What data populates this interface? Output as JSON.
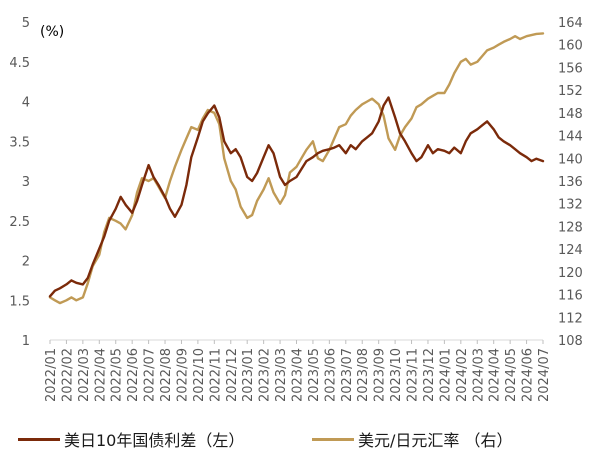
{
  "chart_data": {
    "type": "line",
    "unit_label": "(%)",
    "left_axis": {
      "ticks": [
        "1",
        "1.5",
        "2",
        "2.5",
        "3",
        "3.5",
        "4",
        "4.5",
        "5"
      ],
      "range": [
        1,
        5
      ]
    },
    "right_axis": {
      "ticks": [
        "108",
        "112",
        "116",
        "120",
        "124",
        "128",
        "132",
        "136",
        "140",
        "144",
        "148",
        "152",
        "156",
        "160",
        "164"
      ],
      "range": [
        108,
        164
      ]
    },
    "x_ticks": [
      "2022/01",
      "2022/02",
      "2022/03",
      "2022/04",
      "2022/05",
      "2022/06",
      "2022/07",
      "2022/08",
      "2022/09",
      "2022/10",
      "2022/11",
      "2022/12",
      "2023/01",
      "2023/02",
      "2023/03",
      "2023/04",
      "2023/05",
      "2023/06",
      "2023/07",
      "2023/08",
      "2023/09",
      "2023/10",
      "2023/11",
      "2023/12",
      "2024/01",
      "2024/02",
      "2024/03",
      "2024/04",
      "2024/05",
      "2024/06",
      "2024/07"
    ],
    "series": [
      {
        "name": "美日10年国债利差（左）",
        "axis": "left",
        "color": "#7b2a0a",
        "points": [
          [
            0,
            1.55
          ],
          [
            0.3,
            1.62
          ],
          [
            0.6,
            1.65
          ],
          [
            1.0,
            1.7
          ],
          [
            1.3,
            1.75
          ],
          [
            1.6,
            1.72
          ],
          [
            2.0,
            1.7
          ],
          [
            2.3,
            1.78
          ],
          [
            2.6,
            1.95
          ],
          [
            3.0,
            2.15
          ],
          [
            3.3,
            2.3
          ],
          [
            3.6,
            2.5
          ],
          [
            4.0,
            2.65
          ],
          [
            4.3,
            2.8
          ],
          [
            4.6,
            2.7
          ],
          [
            5.0,
            2.6
          ],
          [
            5.3,
            2.75
          ],
          [
            5.6,
            2.95
          ],
          [
            6.0,
            3.2
          ],
          [
            6.3,
            3.05
          ],
          [
            6.6,
            2.95
          ],
          [
            7.0,
            2.8
          ],
          [
            7.3,
            2.65
          ],
          [
            7.6,
            2.55
          ],
          [
            8.0,
            2.7
          ],
          [
            8.3,
            2.95
          ],
          [
            8.6,
            3.3
          ],
          [
            9.0,
            3.55
          ],
          [
            9.3,
            3.75
          ],
          [
            9.6,
            3.85
          ],
          [
            10.0,
            3.95
          ],
          [
            10.3,
            3.8
          ],
          [
            10.6,
            3.5
          ],
          [
            11.0,
            3.35
          ],
          [
            11.3,
            3.4
          ],
          [
            11.6,
            3.3
          ],
          [
            12.0,
            3.05
          ],
          [
            12.3,
            3.0
          ],
          [
            12.6,
            3.1
          ],
          [
            13.0,
            3.3
          ],
          [
            13.3,
            3.45
          ],
          [
            13.6,
            3.35
          ],
          [
            14.0,
            3.05
          ],
          [
            14.3,
            2.95
          ],
          [
            14.6,
            3.0
          ],
          [
            15.0,
            3.05
          ],
          [
            15.3,
            3.15
          ],
          [
            15.6,
            3.25
          ],
          [
            16.0,
            3.3
          ],
          [
            16.3,
            3.35
          ],
          [
            16.6,
            3.38
          ],
          [
            17.0,
            3.4
          ],
          [
            17.3,
            3.42
          ],
          [
            17.6,
            3.45
          ],
          [
            18.0,
            3.35
          ],
          [
            18.3,
            3.45
          ],
          [
            18.6,
            3.4
          ],
          [
            19.0,
            3.5
          ],
          [
            19.3,
            3.55
          ],
          [
            19.6,
            3.6
          ],
          [
            20.0,
            3.75
          ],
          [
            20.3,
            3.95
          ],
          [
            20.6,
            4.05
          ],
          [
            21.0,
            3.8
          ],
          [
            21.3,
            3.6
          ],
          [
            21.6,
            3.5
          ],
          [
            22.0,
            3.35
          ],
          [
            22.3,
            3.25
          ],
          [
            22.6,
            3.3
          ],
          [
            23.0,
            3.45
          ],
          [
            23.3,
            3.35
          ],
          [
            23.6,
            3.4
          ],
          [
            24.0,
            3.38
          ],
          [
            24.3,
            3.35
          ],
          [
            24.6,
            3.42
          ],
          [
            25.0,
            3.35
          ],
          [
            25.3,
            3.5
          ],
          [
            25.6,
            3.6
          ],
          [
            26.0,
            3.65
          ],
          [
            26.3,
            3.7
          ],
          [
            26.6,
            3.75
          ],
          [
            27.0,
            3.65
          ],
          [
            27.3,
            3.55
          ],
          [
            27.6,
            3.5
          ],
          [
            28.0,
            3.45
          ],
          [
            28.3,
            3.4
          ],
          [
            28.6,
            3.35
          ],
          [
            29.0,
            3.3
          ],
          [
            29.3,
            3.25
          ],
          [
            29.6,
            3.28
          ],
          [
            30.0,
            3.25
          ]
        ]
      },
      {
        "name": "美元/日元汇率 （右）",
        "axis": "right",
        "color": "#c09a55",
        "points": [
          [
            0,
            115.5
          ],
          [
            0.3,
            115.0
          ],
          [
            0.6,
            114.5
          ],
          [
            1.0,
            115.0
          ],
          [
            1.3,
            115.5
          ],
          [
            1.6,
            115.0
          ],
          [
            2.0,
            115.5
          ],
          [
            2.3,
            118.0
          ],
          [
            2.6,
            121.0
          ],
          [
            3.0,
            123.0
          ],
          [
            3.3,
            127.0
          ],
          [
            3.6,
            129.5
          ],
          [
            4.0,
            129.0
          ],
          [
            4.3,
            128.5
          ],
          [
            4.6,
            127.5
          ],
          [
            5.0,
            130.0
          ],
          [
            5.3,
            134.0
          ],
          [
            5.6,
            136.5
          ],
          [
            6.0,
            136.0
          ],
          [
            6.3,
            136.5
          ],
          [
            6.6,
            135.0
          ],
          [
            7.0,
            133.0
          ],
          [
            7.3,
            136.0
          ],
          [
            7.6,
            138.5
          ],
          [
            8.0,
            141.5
          ],
          [
            8.3,
            143.5
          ],
          [
            8.6,
            145.5
          ],
          [
            9.0,
            145.0
          ],
          [
            9.3,
            147.0
          ],
          [
            9.6,
            148.5
          ],
          [
            10.0,
            148.0
          ],
          [
            10.3,
            146.0
          ],
          [
            10.6,
            140.0
          ],
          [
            11.0,
            136.0
          ],
          [
            11.3,
            134.5
          ],
          [
            11.6,
            131.5
          ],
          [
            12.0,
            129.5
          ],
          [
            12.3,
            130.0
          ],
          [
            12.6,
            132.5
          ],
          [
            13.0,
            134.5
          ],
          [
            13.3,
            136.5
          ],
          [
            13.6,
            134.0
          ],
          [
            14.0,
            132.0
          ],
          [
            14.3,
            133.5
          ],
          [
            14.6,
            137.5
          ],
          [
            15.0,
            138.5
          ],
          [
            15.3,
            140.0
          ],
          [
            15.6,
            141.5
          ],
          [
            16.0,
            143.0
          ],
          [
            16.3,
            140.0
          ],
          [
            16.6,
            139.5
          ],
          [
            17.0,
            141.5
          ],
          [
            17.3,
            143.5
          ],
          [
            17.6,
            145.5
          ],
          [
            18.0,
            146.0
          ],
          [
            18.3,
            147.5
          ],
          [
            18.6,
            148.5
          ],
          [
            19.0,
            149.5
          ],
          [
            19.3,
            150.0
          ],
          [
            19.6,
            150.5
          ],
          [
            20.0,
            149.5
          ],
          [
            20.3,
            147.5
          ],
          [
            20.6,
            143.5
          ],
          [
            21.0,
            141.5
          ],
          [
            21.3,
            144.0
          ],
          [
            21.6,
            145.5
          ],
          [
            22.0,
            147.0
          ],
          [
            22.3,
            149.0
          ],
          [
            22.6,
            149.5
          ],
          [
            23.0,
            150.5
          ],
          [
            23.3,
            151.0
          ],
          [
            23.6,
            151.5
          ],
          [
            24.0,
            151.5
          ],
          [
            24.3,
            153.0
          ],
          [
            24.6,
            155.0
          ],
          [
            25.0,
            157.0
          ],
          [
            25.3,
            157.5
          ],
          [
            25.6,
            156.5
          ],
          [
            26.0,
            157.0
          ],
          [
            26.3,
            158.0
          ],
          [
            26.6,
            159.0
          ],
          [
            27.0,
            159.5
          ],
          [
            27.3,
            160.0
          ],
          [
            27.6,
            160.5
          ],
          [
            28.0,
            161.0
          ],
          [
            28.3,
            161.5
          ],
          [
            28.6,
            161.0
          ],
          [
            29.0,
            161.5
          ],
          [
            29.3,
            161.7
          ],
          [
            29.6,
            161.9
          ],
          [
            30.0,
            162.0
          ]
        ]
      }
    ]
  }
}
